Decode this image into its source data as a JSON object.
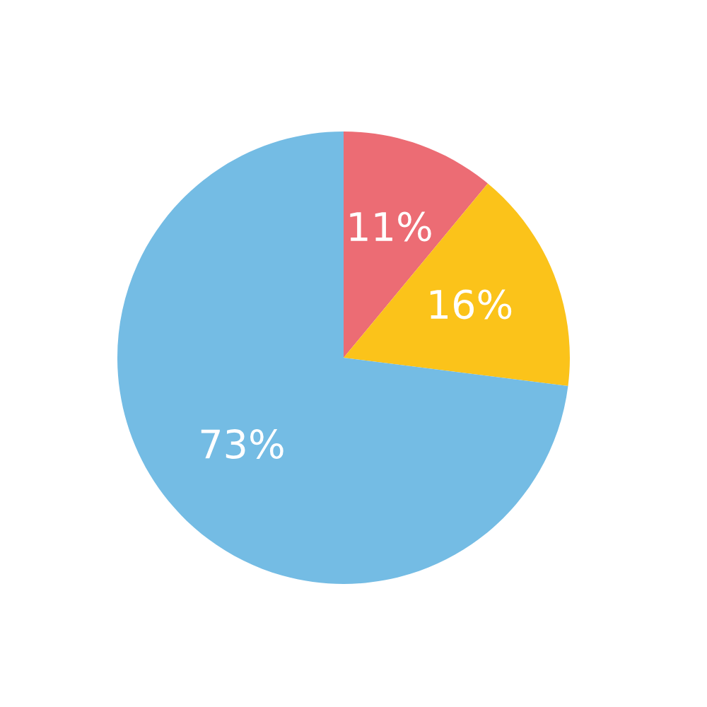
{
  "chart_data": {
    "type": "pie",
    "categories": [
      null,
      null,
      null
    ],
    "values": [
      11,
      16,
      73
    ],
    "value_labels": [
      "11%",
      "16%",
      "73%"
    ],
    "colors": [
      "#ec6c74",
      "#fbc31a",
      "#74bce4"
    ],
    "legend": false
  }
}
